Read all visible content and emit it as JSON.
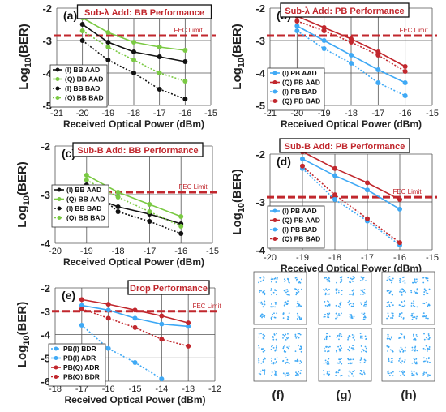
{
  "fec_label": "FEC Limit",
  "colors": {
    "bb_black": "#111111",
    "bb_green": "#7ac943",
    "pb_blue": "#3fa9f5",
    "pb_red": "#c1272d",
    "fec_line": "#c1272d",
    "title_text": "#c1272d"
  },
  "panel_letters": {
    "f": "(f)",
    "g": "(g)",
    "h": "(h)"
  },
  "chart_data": [
    {
      "id": "a",
      "type": "line",
      "letter": "(a)",
      "title": "Sub-λ Add: BB Performance",
      "xlabel": "Received Optical Power (dBm)",
      "ylabel": "Log10(BER)",
      "xlim": [
        -21,
        -15
      ],
      "ylim": [
        -5,
        -2
      ],
      "xticks": [
        -21,
        -20,
        -19,
        -18,
        -17,
        -16,
        -15
      ],
      "yticks": [
        -2,
        -3,
        -4,
        -5
      ],
      "fec": -2.85,
      "legend": "bottom-left",
      "series": [
        {
          "name": "(I) BB AAD",
          "color": "#111111",
          "dash": false,
          "x": [
            -20,
            -19,
            -18,
            -17,
            -16
          ],
          "y": [
            -2.5,
            -3.05,
            -3.35,
            -3.5,
            -3.65
          ]
        },
        {
          "name": "(Q) BB AAD",
          "color": "#7ac943",
          "dash": false,
          "x": [
            -20,
            -19,
            -18,
            -17,
            -16
          ],
          "y": [
            -2.3,
            -2.75,
            -3.05,
            -3.2,
            -3.3
          ]
        },
        {
          "name": "(I) BB BAD",
          "color": "#111111",
          "dash": true,
          "x": [
            -20,
            -19,
            -18,
            -17,
            -16
          ],
          "y": [
            -3.0,
            -3.6,
            -4.0,
            -4.5,
            -4.8
          ]
        },
        {
          "name": "(Q) BB BAD",
          "color": "#7ac943",
          "dash": true,
          "x": [
            -20,
            -19,
            -18,
            -17,
            -16
          ],
          "y": [
            -2.7,
            -3.2,
            -3.6,
            -4.0,
            -4.25
          ]
        }
      ]
    },
    {
      "id": "b",
      "type": "line",
      "letter": "(b)",
      "title": "Sub-λ Add: PB Performance",
      "xlabel": "Received Optical Power (dBm)",
      "ylabel": "Log10(BER)",
      "xlim": [
        -21,
        -15
      ],
      "ylim": [
        -5,
        -2
      ],
      "xticks": [
        -21,
        -20,
        -19,
        -18,
        -17,
        -16,
        -15
      ],
      "yticks": [
        -2,
        -3,
        -4,
        -5
      ],
      "fec": -2.85,
      "legend": "bottom-left",
      "series": [
        {
          "name": "(I) PB AAD",
          "color": "#3fa9f5",
          "dash": false,
          "x": [
            -20,
            -19,
            -18,
            -17,
            -16
          ],
          "y": [
            -2.55,
            -3.0,
            -3.45,
            -3.9,
            -4.3
          ]
        },
        {
          "name": "(Q) PB AAD",
          "color": "#c1272d",
          "dash": false,
          "x": [
            -20,
            -19,
            -18,
            -17,
            -16
          ],
          "y": [
            -2.25,
            -2.6,
            -2.95,
            -3.35,
            -3.8
          ]
        },
        {
          "name": "(I) PB BAD",
          "color": "#3fa9f5",
          "dash": true,
          "x": [
            -20,
            -19,
            -18,
            -17,
            -16
          ],
          "y": [
            -2.7,
            -3.25,
            -3.7,
            -4.3,
            -4.7
          ]
        },
        {
          "name": "(Q) PB BAD",
          "color": "#c1272d",
          "dash": true,
          "x": [
            -20,
            -19,
            -18,
            -17,
            -16
          ],
          "y": [
            -2.4,
            -2.7,
            -3.05,
            -3.45,
            -3.95
          ]
        }
      ]
    },
    {
      "id": "c",
      "type": "line",
      "letter": "(c)",
      "title": "Sub-B Add: BB Performance",
      "xlabel": "Received Optical Power (dBm)",
      "ylabel": "Log10(BER)",
      "xlim": [
        -20,
        -15
      ],
      "ylim": [
        -4,
        -2
      ],
      "xticks": [
        -20,
        -19,
        -18,
        -17,
        -16,
        -15
      ],
      "yticks": [
        -2,
        -3,
        -4
      ],
      "fec": -2.95,
      "legend": "bottom-left",
      "series": [
        {
          "name": "(I) BB AAD",
          "color": "#111111",
          "dash": false,
          "x": [
            -19,
            -18,
            -17,
            -16
          ],
          "y": [
            -3.0,
            -3.25,
            -3.4,
            -3.6
          ]
        },
        {
          "name": "(Q) BB AAD",
          "color": "#7ac943",
          "dash": false,
          "x": [
            -19,
            -18,
            -17,
            -16
          ],
          "y": [
            -2.6,
            -2.95,
            -3.2,
            -3.45
          ]
        },
        {
          "name": "(I) BB BAD",
          "color": "#111111",
          "dash": true,
          "x": [
            -19,
            -18,
            -17,
            -16
          ],
          "y": [
            -2.8,
            -3.35,
            -3.55,
            -3.8
          ]
        },
        {
          "name": "(Q) BB BAD",
          "color": "#7ac943",
          "dash": true,
          "x": [
            -19,
            -18,
            -17,
            -16
          ],
          "y": [
            -2.7,
            -3.05,
            -3.35,
            -3.65
          ]
        }
      ]
    },
    {
      "id": "d",
      "type": "line",
      "letter": "(d)",
      "title": "Sub-B Add: PB Performance",
      "xlabel": "Received Optical Power (dBm)",
      "ylabel": "Log10(BER)",
      "xlim": [
        -20,
        -15
      ],
      "ylim": [
        -4,
        -2
      ],
      "xticks": [
        -20,
        -19,
        -18,
        -17,
        -16,
        -15
      ],
      "yticks": [
        -2,
        -3,
        -4
      ],
      "fec": -2.9,
      "legend": "bottom-left",
      "series": [
        {
          "name": "(I) PB AAD",
          "color": "#3fa9f5",
          "dash": false,
          "x": [
            -19,
            -18,
            -17,
            -16
          ],
          "y": [
            -2.1,
            -2.45,
            -2.75,
            -3.15
          ]
        },
        {
          "name": "(Q) PB AAD",
          "color": "#c1272d",
          "dash": false,
          "x": [
            -19,
            -18,
            -17,
            -16
          ],
          "y": [
            -1.95,
            -2.3,
            -2.6,
            -2.95
          ]
        },
        {
          "name": "(I) PB BAD",
          "color": "#3fa9f5",
          "dash": true,
          "x": [
            -19,
            -18,
            -17,
            -16
          ],
          "y": [
            -2.3,
            -2.95,
            -3.4,
            -3.9
          ]
        },
        {
          "name": "(Q) PB BAD",
          "color": "#c1272d",
          "dash": true,
          "x": [
            -19,
            -18,
            -17,
            -16
          ],
          "y": [
            -2.25,
            -2.85,
            -3.35,
            -3.85
          ]
        }
      ]
    },
    {
      "id": "e",
      "type": "line",
      "letter": "(e)",
      "title": "Drop Performance",
      "xlabel": "Received Optical Power (dBm)",
      "ylabel": "Log10(BER)",
      "xlim": [
        -18,
        -12
      ],
      "ylim": [
        -6,
        -2
      ],
      "xticks": [
        -18,
        -17,
        -16,
        -15,
        -14,
        -13,
        -12
      ],
      "yticks": [
        -2,
        -3,
        -4,
        -5,
        -6
      ],
      "fec": -3.0,
      "legend": "bottom-left",
      "series": [
        {
          "name": "PB(I) BDR",
          "color": "#3fa9f5",
          "dash": true,
          "x": [
            -17,
            -16,
            -15,
            -14
          ],
          "y": [
            -3.6,
            -4.6,
            -5.2,
            -5.9
          ]
        },
        {
          "name": "PB(I) ADR",
          "color": "#3fa9f5",
          "dash": false,
          "x": [
            -17,
            -16,
            -15,
            -14,
            -13
          ],
          "y": [
            -2.75,
            -2.95,
            -3.3,
            -3.55,
            -3.65
          ]
        },
        {
          "name": "PB(Q) ADR",
          "color": "#c1272d",
          "dash": false,
          "x": [
            -17,
            -16,
            -15,
            -14,
            -13
          ],
          "y": [
            -2.5,
            -2.7,
            -2.95,
            -3.2,
            -3.5
          ]
        },
        {
          "name": "PB(Q) BDR",
          "color": "#c1272d",
          "dash": true,
          "x": [
            -17,
            -16,
            -15,
            -14,
            -13
          ],
          "y": [
            -2.9,
            -3.3,
            -3.7,
            -4.2,
            -4.5
          ]
        }
      ]
    }
  ]
}
